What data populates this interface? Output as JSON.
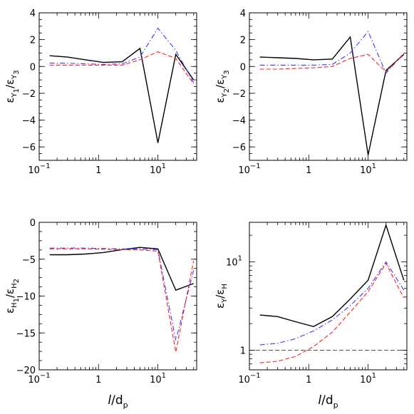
{
  "chart_data": [
    {
      "id": "p1",
      "type": "line",
      "xscale": "log",
      "yscale": "linear",
      "xlim": [
        0.1,
        45
      ],
      "ylim": [
        -7,
        4
      ],
      "yticks": [
        -6,
        -4,
        -2,
        0,
        2,
        4
      ],
      "yticklabels": [
        "−6",
        "−4",
        "−2",
        "0",
        "2",
        "4"
      ],
      "ylabel": {
        "sym": "ε",
        "num": "Y",
        "num_sub": "1",
        "den": "ε",
        "den_sub": "Y",
        "den_subsub": "3"
      },
      "xlabel": "",
      "series": [
        {
          "style": "solid",
          "color": "#000000",
          "x": [
            0.15,
            0.3,
            0.6,
            1.2,
            2.5,
            5,
            10,
            20,
            40
          ],
          "y": [
            0.8,
            0.7,
            0.5,
            0.3,
            0.35,
            1.35,
            -5.7,
            0.9,
            -1.0
          ]
        },
        {
          "style": "dashdot",
          "color": "#3a3aff",
          "x": [
            0.15,
            0.3,
            0.6,
            1.2,
            2.5,
            5,
            10,
            20,
            40
          ],
          "y": [
            0.25,
            0.25,
            0.2,
            0.15,
            0.2,
            0.7,
            2.85,
            1.2,
            -1.2
          ]
        },
        {
          "style": "dashed",
          "color": "#ff2020",
          "x": [
            0.15,
            0.3,
            0.6,
            1.2,
            2.5,
            5,
            10,
            20,
            40
          ],
          "y": [
            0.1,
            0.1,
            0.1,
            0.1,
            0.1,
            0.5,
            1.1,
            0.6,
            -1.3
          ]
        }
      ]
    },
    {
      "id": "p2",
      "type": "line",
      "xscale": "log",
      "yscale": "linear",
      "xlim": [
        0.1,
        45
      ],
      "ylim": [
        -7,
        4
      ],
      "yticks": [
        -6,
        -4,
        -2,
        0,
        2,
        4
      ],
      "yticklabels": [
        "−6",
        "−4",
        "−2",
        "0",
        "2",
        "4"
      ],
      "ylabel": {
        "sym": "ε",
        "num": "Y",
        "num_sub": "2",
        "den": "ε",
        "den_sub": "Y",
        "den_subsub": "3"
      },
      "xlabel": "",
      "series": [
        {
          "style": "solid",
          "color": "#000000",
          "x": [
            0.15,
            0.3,
            0.6,
            1.2,
            2.5,
            5,
            10,
            20,
            40
          ],
          "y": [
            0.7,
            0.65,
            0.6,
            0.5,
            0.55,
            2.2,
            -6.6,
            -0.3,
            0.9
          ]
        },
        {
          "style": "dashdot",
          "color": "#3a3aff",
          "x": [
            0.15,
            0.3,
            0.6,
            1.2,
            2.5,
            5,
            10,
            20,
            40
          ],
          "y": [
            0.1,
            0.1,
            0.1,
            0.1,
            0.15,
            1.0,
            2.6,
            -0.5,
            1.0
          ]
        },
        {
          "style": "dashed",
          "color": "#ff2020",
          "x": [
            0.15,
            0.3,
            0.6,
            1.2,
            2.5,
            5,
            10,
            20,
            40
          ],
          "y": [
            -0.2,
            -0.2,
            -0.15,
            -0.1,
            0.0,
            0.6,
            0.9,
            -0.4,
            0.95
          ]
        }
      ]
    },
    {
      "id": "p3",
      "type": "line",
      "xscale": "log",
      "yscale": "linear",
      "xlim": [
        0.1,
        45
      ],
      "ylim": [
        -20,
        0
      ],
      "yticks": [
        -20,
        -15,
        -10,
        -5,
        0
      ],
      "yticklabels": [
        "−20",
        "−15",
        "−10",
        "−5",
        "0"
      ],
      "ylabel": {
        "sym": "ε",
        "num": "H",
        "num_sub": "1",
        "den": "ε",
        "den_sub": "H",
        "den_subsub": "2"
      },
      "xlabel": {
        "italic": "l",
        "rest": "/d",
        "sub": "p"
      },
      "series": [
        {
          "style": "solid",
          "color": "#000000",
          "x": [
            0.15,
            0.3,
            0.6,
            1.2,
            2.5,
            5,
            10,
            20,
            40
          ],
          "y": [
            -4.4,
            -4.4,
            -4.3,
            -4.1,
            -3.7,
            -3.4,
            -3.6,
            -9.2,
            -8.3
          ]
        },
        {
          "style": "dashdot",
          "color": "#3a3aff",
          "x": [
            0.15,
            0.3,
            0.6,
            1.2,
            2.5,
            5,
            10,
            20,
            40
          ],
          "y": [
            -3.5,
            -3.5,
            -3.5,
            -3.55,
            -3.6,
            -3.6,
            -3.7,
            -16.0,
            -6.5
          ]
        },
        {
          "style": "dashed",
          "color": "#ff2020",
          "x": [
            0.15,
            0.3,
            0.6,
            1.2,
            2.5,
            5,
            10,
            20,
            40
          ],
          "y": [
            -3.6,
            -3.6,
            -3.6,
            -3.65,
            -3.7,
            -3.75,
            -3.9,
            -17.6,
            -5.2
          ]
        }
      ]
    },
    {
      "id": "p4",
      "type": "line",
      "xscale": "log",
      "yscale": "log",
      "xlim": [
        0.1,
        45
      ],
      "ylim": [
        0.6,
        28
      ],
      "ymajor": [
        {
          "v": 1,
          "base": "1",
          "exp": ""
        },
        {
          "v": 10,
          "base": "10",
          "exp": "1"
        }
      ],
      "yminor": [
        0.7,
        0.8,
        0.9,
        2,
        3,
        4,
        5,
        6,
        7,
        8,
        9,
        20
      ],
      "ylabel": {
        "sym": "ε",
        "num": "Y",
        "num_sub": "",
        "den": "ε",
        "den_sub": "H",
        "den_subsub": ""
      },
      "xlabel": {
        "italic": "l",
        "rest": "/d",
        "sub": "p"
      },
      "series": [
        {
          "style": "solid",
          "color": "#000000",
          "x": [
            0.15,
            0.3,
            0.6,
            1.2,
            2.5,
            5,
            10,
            20,
            40
          ],
          "y": [
            2.5,
            2.4,
            2.1,
            1.85,
            2.4,
            3.8,
            6.2,
            26,
            6.2
          ]
        },
        {
          "style": "dashdot",
          "color": "#3a3aff",
          "x": [
            0.15,
            0.3,
            0.6,
            1.2,
            2.5,
            5,
            10,
            20,
            40
          ],
          "y": [
            1.15,
            1.2,
            1.35,
            1.65,
            2.2,
            3.2,
            5.0,
            10.0,
            4.8
          ]
        },
        {
          "style": "dashed",
          "color": "#ff2020",
          "x": [
            0.15,
            0.3,
            0.6,
            1.2,
            2.5,
            5,
            10,
            20,
            40
          ],
          "y": [
            0.72,
            0.75,
            0.85,
            1.1,
            1.6,
            2.7,
            4.6,
            9.6,
            3.9
          ]
        },
        {
          "style": "dashed",
          "color": "#555555",
          "x": [
            0.1,
            45
          ],
          "y": [
            1,
            1
          ]
        }
      ]
    }
  ],
  "xaxis": {
    "ticks": [
      {
        "v": 0.1,
        "base": "10",
        "exp": "−1"
      },
      {
        "v": 1,
        "base": "1",
        "exp": ""
      },
      {
        "v": 10,
        "base": "10",
        "exp": "1"
      }
    ],
    "minor": [
      0.2,
      0.3,
      0.4,
      0.5,
      0.6,
      0.7,
      0.8,
      0.9,
      2,
      3,
      4,
      5,
      6,
      7,
      8,
      9,
      20,
      30,
      40
    ]
  }
}
